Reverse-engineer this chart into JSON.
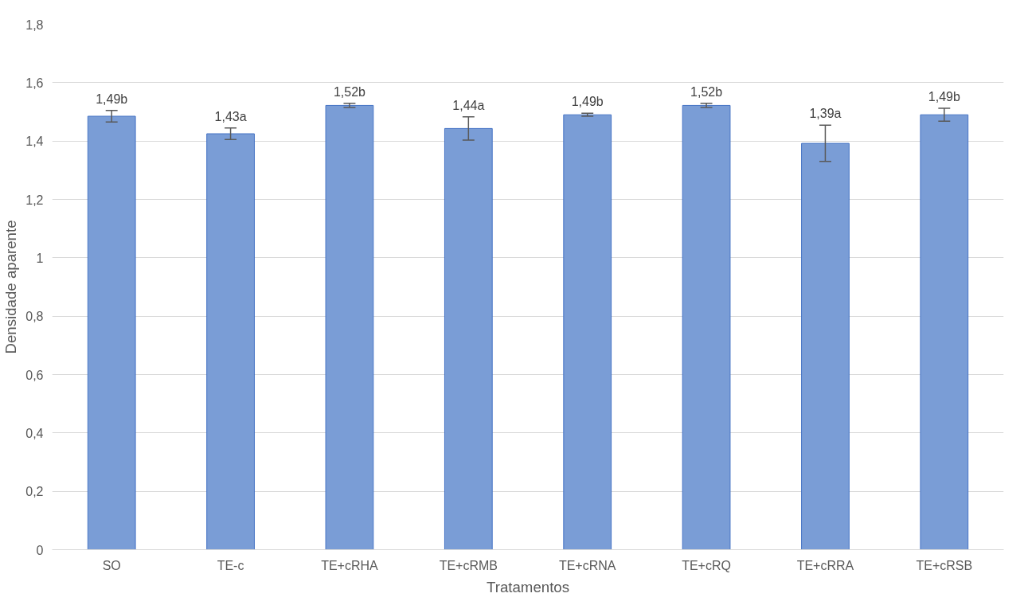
{
  "chart_data": {
    "type": "bar",
    "xlabel": "Tratamentos",
    "ylabel": "Densidade aparente",
    "categories": [
      "SO",
      "TE-c",
      "TE+cRHA",
      "TE+cRMB",
      "TE+cRNA",
      "TE+cRQ",
      "TE+cRRA",
      "TE+cRSB"
    ],
    "values": [
      1.485,
      1.425,
      1.522,
      1.443,
      1.49,
      1.522,
      1.392,
      1.49
    ],
    "errors": [
      0.02,
      0.02,
      0.007,
      0.04,
      0.005,
      0.007,
      0.062,
      0.022
    ],
    "value_labels": [
      "1,49b",
      "1,43a",
      "1,52b",
      "1,44a",
      "1,49b",
      "1,52b",
      "1,39a",
      "1,49b"
    ],
    "color": "#7a9dd6",
    "ylim": [
      0,
      1.8
    ],
    "yticks": [
      {
        "value": 0,
        "label": "0"
      },
      {
        "value": 0.2,
        "label": "0,2"
      },
      {
        "value": 0.4,
        "label": "0,4"
      },
      {
        "value": 0.6,
        "label": "0,6"
      },
      {
        "value": 0.8,
        "label": "0,8"
      },
      {
        "value": 1,
        "label": "1"
      },
      {
        "value": 1.2,
        "label": "1,2"
      },
      {
        "value": 1.4,
        "label": "1,4"
      },
      {
        "value": 1.6,
        "label": "1,6"
      },
      {
        "value": 1.8,
        "label": "1,8"
      }
    ],
    "grid": "y"
  }
}
